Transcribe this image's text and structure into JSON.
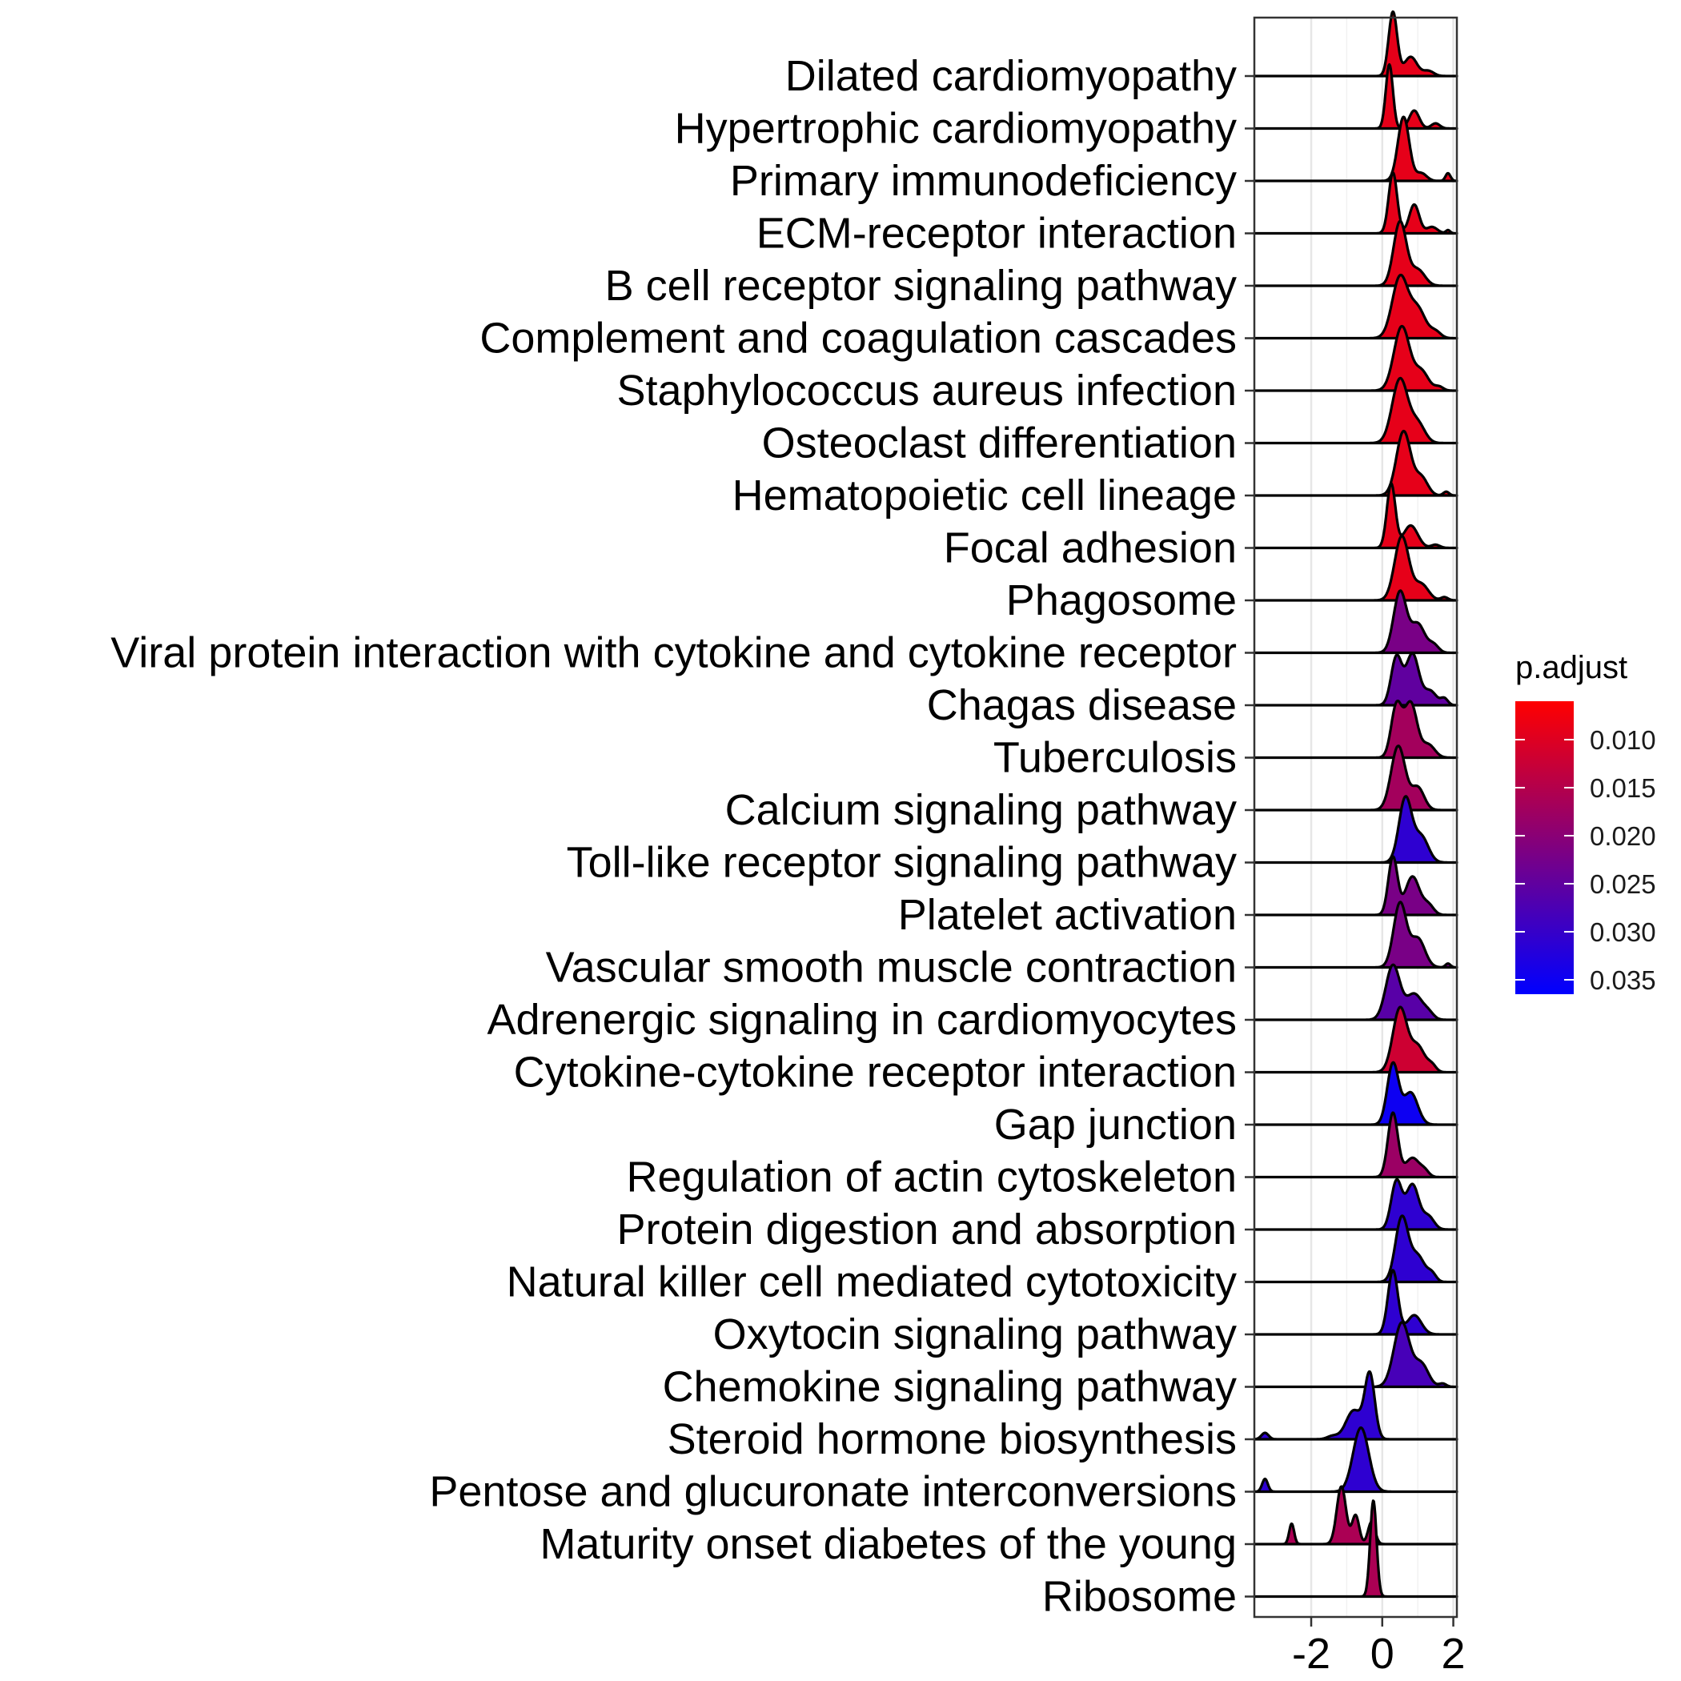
{
  "chart_data": {
    "type": "ridgeline",
    "categories": [
      "Dilated cardiomyopathy",
      "Hypertrophic cardiomyopathy",
      "Primary immunodeficiency",
      "ECM-receptor interaction",
      "B cell receptor signaling pathway",
      "Complement and coagulation cascades",
      "Staphylococcus aureus infection",
      "Osteoclast differentiation",
      "Hematopoietic cell lineage",
      "Focal adhesion",
      "Phagosome",
      "Viral protein interaction with cytokine and cytokine receptor",
      "Chagas disease",
      "Tuberculosis",
      "Calcium signaling pathway",
      "Toll-like receptor signaling pathway",
      "Platelet activation",
      "Vascular smooth muscle contraction",
      "Adrenergic signaling in cardiomyocytes",
      "Cytokine-cytokine receptor interaction",
      "Gap junction",
      "Regulation of actin cytoskeleton",
      "Protein digestion and absorption",
      "Natural killer cell mediated cytotoxicity",
      "Oxytocin signaling pathway",
      "Chemokine signaling pathway",
      "Steroid hormone biosynthesis",
      "Pentose and glucuronate interconversions",
      "Maturity onset diabetes of the young",
      "Ribosome"
    ],
    "series": [
      {
        "x_range": [
          -3.6,
          2.1
        ],
        "p_adjust": 0.009,
        "peaks": [
          [
            0.3,
            1.0,
            0.12
          ],
          [
            0.8,
            0.3,
            0.18
          ],
          [
            1.3,
            0.08,
            0.15
          ]
        ]
      },
      {
        "x_range": [
          -3.6,
          2.1
        ],
        "p_adjust": 0.009,
        "peaks": [
          [
            0.2,
            1.0,
            0.1
          ],
          [
            0.9,
            0.28,
            0.14
          ],
          [
            1.5,
            0.08,
            0.12
          ]
        ]
      },
      {
        "x_range": [
          -3.6,
          2.1
        ],
        "p_adjust": 0.009,
        "peaks": [
          [
            0.6,
            1.0,
            0.16
          ],
          [
            1.1,
            0.12,
            0.15
          ],
          [
            1.85,
            0.12,
            0.07
          ]
        ]
      },
      {
        "x_range": [
          -3.6,
          2.1
        ],
        "p_adjust": 0.009,
        "peaks": [
          [
            0.3,
            0.95,
            0.12
          ],
          [
            0.9,
            0.45,
            0.14
          ],
          [
            1.4,
            0.1,
            0.15
          ],
          [
            1.85,
            0.05,
            0.06
          ]
        ]
      },
      {
        "x_range": [
          -3.6,
          2.1
        ],
        "p_adjust": 0.009,
        "peaks": [
          [
            0.5,
            1.0,
            0.18
          ],
          [
            1.0,
            0.25,
            0.2
          ]
        ]
      },
      {
        "x_range": [
          -3.6,
          2.1
        ],
        "p_adjust": 0.009,
        "peaks": [
          [
            0.5,
            0.95,
            0.22
          ],
          [
            1.0,
            0.45,
            0.22
          ],
          [
            1.5,
            0.1,
            0.15
          ]
        ]
      },
      {
        "x_range": [
          -3.6,
          2.1
        ],
        "p_adjust": 0.009,
        "peaks": [
          [
            0.55,
            1.0,
            0.22
          ],
          [
            1.1,
            0.3,
            0.2
          ],
          [
            1.6,
            0.06,
            0.12
          ]
        ]
      },
      {
        "x_range": [
          -3.6,
          2.1
        ],
        "p_adjust": 0.009,
        "peaks": [
          [
            0.5,
            1.0,
            0.22
          ],
          [
            1.0,
            0.3,
            0.2
          ]
        ]
      },
      {
        "x_range": [
          -3.6,
          2.1
        ],
        "p_adjust": 0.009,
        "peaks": [
          [
            0.6,
            1.0,
            0.2
          ],
          [
            1.1,
            0.28,
            0.18
          ],
          [
            1.8,
            0.06,
            0.08
          ]
        ]
      },
      {
        "x_range": [
          -3.6,
          2.1
        ],
        "p_adjust": 0.009,
        "peaks": [
          [
            0.25,
            1.0,
            0.12
          ],
          [
            0.8,
            0.35,
            0.2
          ],
          [
            1.5,
            0.05,
            0.12
          ]
        ]
      },
      {
        "x_range": [
          -3.6,
          2.1
        ],
        "p_adjust": 0.009,
        "peaks": [
          [
            0.55,
            1.0,
            0.2
          ],
          [
            1.1,
            0.25,
            0.2
          ],
          [
            1.75,
            0.05,
            0.1
          ]
        ]
      },
      {
        "x_range": [
          -3.6,
          2.1
        ],
        "p_adjust": 0.022,
        "peaks": [
          [
            0.5,
            0.95,
            0.18
          ],
          [
            1.0,
            0.45,
            0.2
          ],
          [
            1.45,
            0.12,
            0.14
          ]
        ]
      },
      {
        "x_range": [
          -3.6,
          2.1
        ],
        "p_adjust": 0.025,
        "peaks": [
          [
            0.4,
            0.75,
            0.15
          ],
          [
            0.85,
            0.8,
            0.18
          ],
          [
            1.35,
            0.22,
            0.18
          ],
          [
            1.75,
            0.1,
            0.1
          ]
        ]
      },
      {
        "x_range": [
          -3.6,
          2.1
        ],
        "p_adjust": 0.017,
        "peaks": [
          [
            0.4,
            0.8,
            0.15
          ],
          [
            0.8,
            0.85,
            0.18
          ],
          [
            1.3,
            0.2,
            0.18
          ]
        ]
      },
      {
        "x_range": [
          -3.6,
          2.1
        ],
        "p_adjust": 0.017,
        "peaks": [
          [
            0.45,
            1.0,
            0.2
          ],
          [
            1.0,
            0.35,
            0.18
          ]
        ]
      },
      {
        "x_range": [
          -3.6,
          2.1
        ],
        "p_adjust": 0.031,
        "peaks": [
          [
            0.65,
            1.0,
            0.18
          ],
          [
            1.1,
            0.4,
            0.2
          ]
        ]
      },
      {
        "x_range": [
          -3.6,
          2.1
        ],
        "p_adjust": 0.022,
        "peaks": [
          [
            0.3,
            0.9,
            0.13
          ],
          [
            0.85,
            0.6,
            0.2
          ],
          [
            1.3,
            0.15,
            0.15
          ]
        ]
      },
      {
        "x_range": [
          -3.6,
          2.1
        ],
        "p_adjust": 0.022,
        "peaks": [
          [
            0.5,
            1.0,
            0.18
          ],
          [
            1.0,
            0.45,
            0.2
          ],
          [
            1.85,
            0.06,
            0.07
          ]
        ]
      },
      {
        "x_range": [
          -3.6,
          2.1
        ],
        "p_adjust": 0.026,
        "peaks": [
          [
            0.3,
            0.85,
            0.2
          ],
          [
            0.9,
            0.4,
            0.22
          ],
          [
            1.3,
            0.1,
            0.15
          ]
        ]
      },
      {
        "x_range": [
          -3.6,
          2.1
        ],
        "p_adjust": 0.012,
        "peaks": [
          [
            0.5,
            1.0,
            0.2
          ],
          [
            1.0,
            0.4,
            0.2
          ],
          [
            1.4,
            0.1,
            0.12
          ]
        ]
      },
      {
        "x_range": [
          -3.6,
          2.1
        ],
        "p_adjust": 0.035,
        "peaks": [
          [
            0.3,
            0.95,
            0.16
          ],
          [
            0.8,
            0.5,
            0.2
          ]
        ]
      },
      {
        "x_range": [
          -3.6,
          2.1
        ],
        "p_adjust": 0.018,
        "peaks": [
          [
            0.3,
            1.0,
            0.14
          ],
          [
            0.85,
            0.3,
            0.2
          ],
          [
            1.2,
            0.08,
            0.12
          ]
        ]
      },
      {
        "x_range": [
          -3.6,
          2.1
        ],
        "p_adjust": 0.031,
        "peaks": [
          [
            0.4,
            0.75,
            0.15
          ],
          [
            0.85,
            0.7,
            0.18
          ],
          [
            1.3,
            0.2,
            0.16
          ]
        ]
      },
      {
        "x_range": [
          -3.6,
          2.1
        ],
        "p_adjust": 0.031,
        "peaks": [
          [
            0.55,
            1.0,
            0.18
          ],
          [
            1.0,
            0.4,
            0.2
          ],
          [
            1.4,
            0.12,
            0.12
          ]
        ]
      },
      {
        "x_range": [
          -3.6,
          2.1
        ],
        "p_adjust": 0.031,
        "peaks": [
          [
            0.3,
            1.0,
            0.14
          ],
          [
            0.9,
            0.3,
            0.2
          ]
        ]
      },
      {
        "x_range": [
          -3.6,
          2.1
        ],
        "p_adjust": 0.028,
        "peaks": [
          [
            0.55,
            1.0,
            0.22
          ],
          [
            1.1,
            0.35,
            0.2
          ],
          [
            1.7,
            0.05,
            0.1
          ]
        ]
      },
      {
        "x_range": [
          -3.6,
          2.1
        ],
        "p_adjust": 0.031,
        "peaks": [
          [
            -0.35,
            1.0,
            0.14
          ],
          [
            -0.8,
            0.45,
            0.22
          ],
          [
            -3.3,
            0.1,
            0.1
          ],
          [
            -1.4,
            0.05,
            0.15
          ]
        ]
      },
      {
        "x_range": [
          -3.6,
          2.1
        ],
        "p_adjust": 0.031,
        "peaks": [
          [
            -0.6,
            1.0,
            0.22
          ],
          [
            -3.3,
            0.2,
            0.08
          ]
        ]
      },
      {
        "x_range": [
          -3.6,
          2.1
        ],
        "p_adjust": 0.016,
        "peaks": [
          [
            -1.15,
            0.9,
            0.13
          ],
          [
            -0.75,
            0.45,
            0.1
          ],
          [
            -2.55,
            0.32,
            0.07
          ],
          [
            -0.3,
            0.35,
            0.1
          ]
        ]
      },
      {
        "x_range": [
          -3.6,
          2.1
        ],
        "p_adjust": 0.016,
        "peaks": [
          [
            -0.25,
            1.5,
            0.09
          ]
        ]
      }
    ],
    "xlim": [
      -3.6,
      2.1
    ],
    "x_ticks": [
      -2,
      0,
      2
    ],
    "x_tick_labels": [
      "-2",
      "0",
      "2"
    ],
    "grid": true,
    "legend": {
      "title": "p.adjust",
      "placement": "right",
      "colormap": {
        "low_color": "#FF0000",
        "high_color": "#0000FF"
      },
      "range": [
        0.006,
        0.0365
      ],
      "ticks": [
        0.01,
        0.015,
        0.02,
        0.025,
        0.03,
        0.035
      ],
      "tick_labels": [
        "0.010",
        "0.015",
        "0.020",
        "0.025",
        "0.030",
        "0.035"
      ]
    }
  }
}
